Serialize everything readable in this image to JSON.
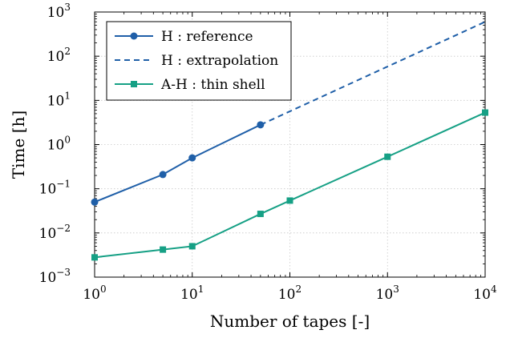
{
  "chart_data": {
    "type": "line",
    "xscale": "log",
    "yscale": "log",
    "xlim": [
      1,
      10000
    ],
    "ylim": [
      0.001,
      1000
    ],
    "xlabel": "Number of tapes [-]",
    "ylabel": "Time [h]",
    "x_ticks": [
      {
        "base": "10",
        "exp": "0",
        "value": 1
      },
      {
        "base": "10",
        "exp": "1",
        "value": 10
      },
      {
        "base": "10",
        "exp": "2",
        "value": 100
      },
      {
        "base": "10",
        "exp": "3",
        "value": 1000
      },
      {
        "base": "10",
        "exp": "4",
        "value": 10000
      }
    ],
    "y_ticks": [
      {
        "base": "10",
        "exp": "−3",
        "value": 0.001
      },
      {
        "base": "10",
        "exp": "−2",
        "value": 0.01
      },
      {
        "base": "10",
        "exp": "−1",
        "value": 0.1
      },
      {
        "base": "10",
        "exp": "0",
        "value": 1
      },
      {
        "base": "10",
        "exp": "1",
        "value": 10
      },
      {
        "base": "10",
        "exp": "2",
        "value": 100
      },
      {
        "base": "10",
        "exp": "3",
        "value": 1000
      }
    ],
    "grid": true,
    "legend_position": "top-left",
    "series": [
      {
        "name": "H : reference",
        "color": "#1f5fa8",
        "marker": "circle",
        "dash": "solid",
        "x": [
          1,
          5,
          10,
          50
        ],
        "y": [
          0.05,
          0.21,
          0.5,
          2.8
        ]
      },
      {
        "name": "H : extrapolation",
        "color": "#1f5fa8",
        "marker": "none",
        "dash": "dashed",
        "x": [
          50,
          10000
        ],
        "y": [
          2.8,
          600
        ]
      },
      {
        "name": "A-H : thin shell",
        "color": "#16a085",
        "marker": "square",
        "dash": "solid",
        "x": [
          1,
          5,
          10,
          50,
          100,
          1000,
          10000
        ],
        "y": [
          0.0028,
          0.0042,
          0.005,
          0.027,
          0.054,
          0.53,
          5.3
        ]
      }
    ]
  }
}
